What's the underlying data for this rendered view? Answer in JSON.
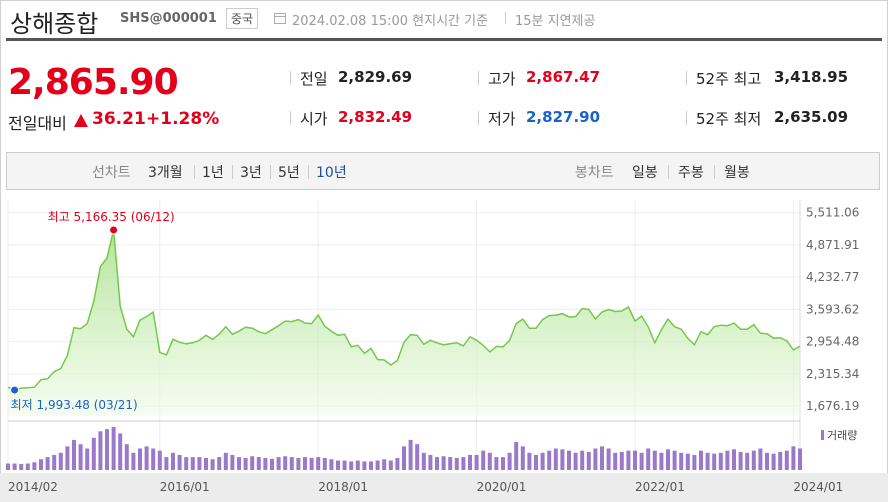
{
  "header": {
    "title": "상해종합",
    "code": "SHS@000001",
    "country": "중국",
    "datetime": "2024.02.08 15:00 현지시간 기준",
    "delay": "15분 지연제공"
  },
  "quote": {
    "price": "2,865.90",
    "price_color": "#e4001b",
    "change_label": "전일대비",
    "change": "36.21",
    "change_pct": "+1.28%",
    "change_color": "#e4001b"
  },
  "stats": [
    {
      "label": "전일",
      "value": "2,829.69",
      "color": "#222222"
    },
    {
      "label": "고가",
      "value": "2,867.47",
      "color": "#e4001b"
    },
    {
      "label": "52주 최고",
      "value": "3,418.95",
      "color": "#222222"
    },
    {
      "label": "시가",
      "value": "2,832.49",
      "color": "#e4001b"
    },
    {
      "label": "저가",
      "value": "2,827.90",
      "color": "#1a62c8"
    },
    {
      "label": "52주 최저",
      "value": "2,635.09",
      "color": "#222222"
    }
  ],
  "tabs": {
    "line_label": "선차트",
    "periods": [
      "3개월",
      "1년",
      "3년",
      "5년",
      "10년"
    ],
    "active": 4,
    "candle_label": "봉차트",
    "candles": [
      "일봉",
      "주봉",
      "월봉"
    ]
  },
  "chart": {
    "type": "line",
    "color": "#74c94c",
    "grid": true,
    "x": [
      "2014/02",
      "2014/03",
      "2014/04",
      "2014/05",
      "2014/06",
      "2014/07",
      "2014/08",
      "2014/09",
      "2014/10",
      "2014/11",
      "2014/12",
      "2015/01",
      "2015/02",
      "2015/03",
      "2015/04",
      "2015/05",
      "2015/06",
      "2015/07",
      "2015/08",
      "2015/09",
      "2015/10",
      "2015/11",
      "2015/12",
      "2016/01",
      "2016/02",
      "2016/03",
      "2016/04",
      "2016/05",
      "2016/06",
      "2016/07",
      "2016/08",
      "2016/09",
      "2016/10",
      "2016/11",
      "2016/12",
      "2017/01",
      "2017/02",
      "2017/03",
      "2017/04",
      "2017/05",
      "2017/06",
      "2017/07",
      "2017/08",
      "2017/09",
      "2017/10",
      "2017/11",
      "2017/12",
      "2018/01",
      "2018/02",
      "2018/03",
      "2018/04",
      "2018/05",
      "2018/06",
      "2018/07",
      "2018/08",
      "2018/09",
      "2018/10",
      "2018/11",
      "2018/12",
      "2019/01",
      "2019/02",
      "2019/03",
      "2019/04",
      "2019/05",
      "2019/06",
      "2019/07",
      "2019/08",
      "2019/09",
      "2019/10",
      "2019/11",
      "2019/12",
      "2020/01",
      "2020/02",
      "2020/03",
      "2020/04",
      "2020/05",
      "2020/06",
      "2020/07",
      "2020/08",
      "2020/09",
      "2020/10",
      "2020/11",
      "2020/12",
      "2021/01",
      "2021/02",
      "2021/03",
      "2021/04",
      "2021/05",
      "2021/06",
      "2021/07",
      "2021/08",
      "2021/09",
      "2021/10",
      "2021/11",
      "2021/12",
      "2022/01",
      "2022/02",
      "2022/03",
      "2022/04",
      "2022/05",
      "2022/06",
      "2022/07",
      "2022/08",
      "2022/09",
      "2022/10",
      "2022/11",
      "2022/12",
      "2023/01",
      "2023/02",
      "2023/03",
      "2023/04",
      "2023/05",
      "2023/06",
      "2023/07",
      "2023/08",
      "2023/09",
      "2023/10",
      "2023/11",
      "2023/12",
      "2024/01",
      "2024/02"
    ],
    "values": [
      2050,
      1993.48,
      2030,
      2040,
      2050,
      2200,
      2220,
      2360,
      2420,
      2680,
      3230,
      3210,
      3310,
      3750,
      4440,
      4610,
      5166.35,
      3660,
      3200,
      3050,
      3380,
      3450,
      3540,
      2740,
      2690,
      3000,
      2940,
      2910,
      2930,
      2980,
      3080,
      3000,
      3100,
      3250,
      3100,
      3160,
      3240,
      3220,
      3150,
      3110,
      3190,
      3270,
      3360,
      3350,
      3390,
      3320,
      3310,
      3480,
      3260,
      3160,
      3080,
      3100,
      2850,
      2880,
      2720,
      2820,
      2600,
      2590,
      2490,
      2580,
      2940,
      3090,
      3080,
      2900,
      2980,
      2930,
      2890,
      2910,
      2930,
      2870,
      3050,
      2980,
      2880,
      2750,
      2860,
      2850,
      2980,
      3310,
      3400,
      3220,
      3220,
      3390,
      3470,
      3480,
      3510,
      3440,
      3450,
      3610,
      3590,
      3400,
      3540,
      3590,
      3550,
      3560,
      3640,
      3360,
      3460,
      3250,
      2930,
      3190,
      3400,
      3250,
      3200,
      3020,
      2890,
      3150,
      3090,
      3250,
      3280,
      3270,
      3320,
      3200,
      3200,
      3290,
      3120,
      3110,
      3020,
      3030,
      2970,
      2790,
      2865.9
    ],
    "volume_label": "거래량",
    "volume_color": "#9a79c9",
    "volume_ylim": [
      0,
      100
    ],
    "volume": [
      15,
      15,
      14,
      15,
      18,
      25,
      30,
      35,
      40,
      55,
      70,
      60,
      50,
      75,
      90,
      95,
      100,
      85,
      60,
      40,
      50,
      55,
      50,
      45,
      30,
      40,
      35,
      30,
      30,
      30,
      28,
      25,
      30,
      40,
      35,
      30,
      28,
      32,
      30,
      28,
      26,
      30,
      32,
      30,
      28,
      30,
      28,
      30,
      28,
      25,
      22,
      22,
      20,
      22,
      20,
      20,
      22,
      25,
      22,
      28,
      55,
      70,
      60,
      40,
      35,
      30,
      32,
      30,
      28,
      30,
      35,
      35,
      45,
      40,
      30,
      30,
      40,
      65,
      55,
      40,
      35,
      40,
      45,
      50,
      48,
      45,
      40,
      45,
      42,
      50,
      55,
      50,
      40,
      42,
      45,
      45,
      40,
      50,
      45,
      40,
      48,
      45,
      40,
      38,
      35,
      45,
      40,
      38,
      40,
      45,
      48,
      42,
      40,
      45,
      50,
      40,
      38,
      42,
      45,
      55,
      50
    ],
    "xlim": [
      "2014/02",
      "2024/02"
    ],
    "xticks": [
      "2014/02",
      "2016/01",
      "2018/01",
      "2020/01",
      "2022/01",
      "2024/01"
    ],
    "ylim": [
      1480,
      5760
    ],
    "yticks": [
      {
        "value": 1676.19,
        "label": "1,676.19"
      },
      {
        "value": 2315.34,
        "label": "2,315.34"
      },
      {
        "value": 2954.48,
        "label": "2,954.48"
      },
      {
        "value": 3593.62,
        "label": "3,593.62"
      },
      {
        "value": 4232.77,
        "label": "4,232.77"
      },
      {
        "value": 4871.91,
        "label": "4,871.91"
      },
      {
        "value": 5511.06,
        "label": "5,511.06"
      }
    ],
    "annotations": [
      {
        "text": "최고 5,166.35 (06/12)",
        "x": "2015/06",
        "y": 5166.35,
        "color": "#e4001b"
      },
      {
        "text": "최저 1,993.48 (03/21)",
        "x": "2014/03",
        "y": 1993.48,
        "color": "#1a62c8"
      }
    ]
  }
}
